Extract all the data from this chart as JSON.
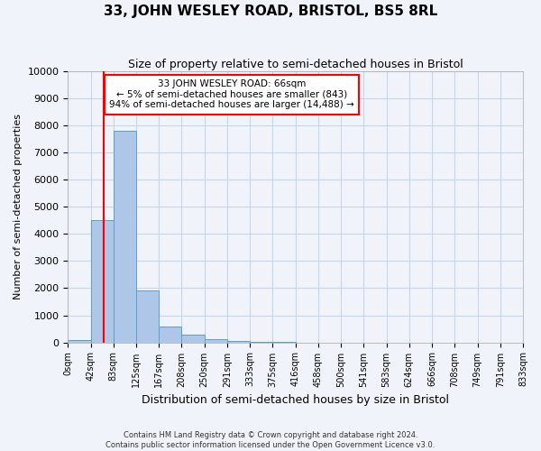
{
  "title": "33, JOHN WESLEY ROAD, BRISTOL, BS5 8RL",
  "subtitle": "Size of property relative to semi-detached houses in Bristol",
  "xlabel": "Distribution of semi-detached houses by size in Bristol",
  "ylabel": "Number of semi-detached properties",
  "bar_color": "#aec6e8",
  "bar_edge_color": "#5a9fd4",
  "background_color": "#f0f4fa",
  "grid_color": "#c8d4e8",
  "ylim": [
    0,
    10000
  ],
  "yticks": [
    0,
    1000,
    2000,
    3000,
    4000,
    5000,
    6000,
    7000,
    8000,
    9000,
    10000
  ],
  "bin_edges": [
    0,
    42,
    83,
    125,
    167,
    208,
    250,
    291,
    333,
    375,
    416,
    458,
    500,
    541,
    583,
    624,
    666,
    708,
    749,
    791,
    833
  ],
  "bin_labels": [
    "0sqm",
    "42sqm",
    "83sqm",
    "125sqm",
    "167sqm",
    "208sqm",
    "250sqm",
    "291sqm",
    "333sqm",
    "375sqm",
    "416sqm",
    "458sqm",
    "500sqm",
    "541sqm",
    "583sqm",
    "624sqm",
    "666sqm",
    "708sqm",
    "749sqm",
    "791sqm",
    "833sqm"
  ],
  "bar_values": [
    100,
    4500,
    7800,
    1900,
    600,
    280,
    130,
    60,
    20,
    5,
    0,
    0,
    0,
    0,
    0,
    0,
    0,
    0,
    0,
    0
  ],
  "property_sqm": 66,
  "annotation_text": "33 JOHN WESLEY ROAD: 66sqm\n← 5% of semi-detached houses are smaller (843)\n94% of semi-detached houses are larger (14,488) →",
  "annotation_box_facecolor": "white",
  "annotation_border_color": "red",
  "vline_color": "red",
  "footer_line1": "Contains HM Land Registry data © Crown copyright and database right 2024.",
  "footer_line2": "Contains public sector information licensed under the Open Government Licence v3.0."
}
